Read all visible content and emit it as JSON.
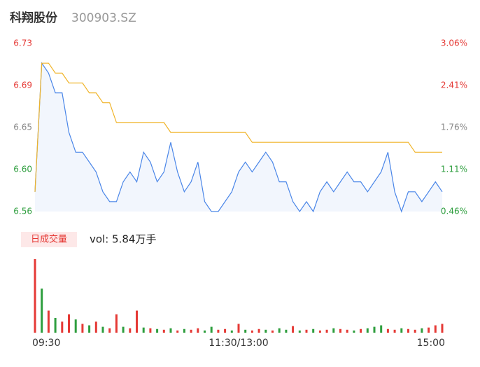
{
  "chart_data": [
    {
      "type": "line",
      "title": "科翔股份",
      "subtitle": "300903.SZ",
      "x": [
        0,
        4,
        8,
        12,
        16,
        20,
        24,
        28,
        32,
        36,
        40,
        44,
        48,
        52,
        56,
        60,
        64,
        68,
        72,
        76,
        80,
        84,
        88,
        92,
        96,
        100,
        104,
        108,
        112,
        116,
        120,
        124,
        128,
        132,
        136,
        140,
        144,
        148,
        152,
        156,
        160,
        164,
        168,
        172,
        176,
        180,
        184,
        188,
        192,
        196,
        200,
        204,
        208,
        212,
        216,
        220,
        224,
        228,
        232,
        236,
        240
      ],
      "xlim": [
        0,
        240
      ],
      "xticks": [
        {
          "value": 0,
          "label": "09:30"
        },
        {
          "value": 120,
          "label": "11:30/13:00"
        },
        {
          "value": 240,
          "label": "15:00"
        }
      ],
      "series": [
        {
          "name": "price",
          "color": "#4a86e8",
          "values": [
            6.58,
            6.71,
            6.7,
            6.68,
            6.68,
            6.64,
            6.62,
            6.62,
            6.61,
            6.6,
            6.58,
            6.57,
            6.57,
            6.59,
            6.6,
            6.59,
            6.62,
            6.61,
            6.59,
            6.6,
            6.63,
            6.6,
            6.58,
            6.59,
            6.61,
            6.57,
            6.56,
            6.56,
            6.57,
            6.58,
            6.6,
            6.61,
            6.6,
            6.61,
            6.62,
            6.61,
            6.59,
            6.59,
            6.57,
            6.56,
            6.57,
            6.56,
            6.58,
            6.59,
            6.58,
            6.59,
            6.6,
            6.59,
            6.59,
            6.58,
            6.59,
            6.6,
            6.62,
            6.58,
            6.56,
            6.58,
            6.58,
            6.57,
            6.58,
            6.59,
            6.58
          ]
        },
        {
          "name": "average",
          "color": "#f0b429",
          "values": [
            6.58,
            6.71,
            6.71,
            6.7,
            6.7,
            6.69,
            6.69,
            6.69,
            6.68,
            6.68,
            6.67,
            6.67,
            6.65,
            6.65,
            6.65,
            6.65,
            6.65,
            6.65,
            6.65,
            6.65,
            6.64,
            6.64,
            6.64,
            6.64,
            6.64,
            6.64,
            6.64,
            6.64,
            6.64,
            6.64,
            6.64,
            6.64,
            6.63,
            6.63,
            6.63,
            6.63,
            6.63,
            6.63,
            6.63,
            6.63,
            6.63,
            6.63,
            6.63,
            6.63,
            6.63,
            6.63,
            6.63,
            6.63,
            6.63,
            6.63,
            6.63,
            6.63,
            6.63,
            6.63,
            6.63,
            6.63,
            6.62,
            6.62,
            6.62,
            6.62,
            6.62
          ]
        }
      ],
      "ylim": [
        6.56,
        6.73
      ],
      "yticks": [
        {
          "value": 6.73,
          "label": "6.73"
        },
        {
          "value": 6.6875,
          "label": "6.69"
        },
        {
          "value": 6.645,
          "label": "6.65"
        },
        {
          "value": 6.6025,
          "label": "6.60"
        },
        {
          "value": 6.56,
          "label": "6.56"
        }
      ],
      "y2lim": [
        0.46,
        3.06
      ],
      "y2ticks": [
        {
          "value": 3.06,
          "label": "3.06%"
        },
        {
          "value": 2.41,
          "label": "2.41%"
        },
        {
          "value": 1.76,
          "label": "1.76%"
        },
        {
          "value": 1.11,
          "label": "1.11%"
        },
        {
          "value": 0.46,
          "label": "0.46%"
        }
      ]
    },
    {
      "type": "bar",
      "title": "日成交量",
      "annotation": "vol: 5.84万手",
      "values": [
        1000,
        600,
        300,
        200,
        150,
        250,
        180,
        120,
        100,
        150,
        80,
        60,
        250,
        80,
        60,
        300,
        70,
        60,
        50,
        40,
        60,
        30,
        50,
        40,
        60,
        30,
        80,
        40,
        50,
        30,
        120,
        40,
        30,
        50,
        40,
        30,
        60,
        40,
        90,
        30,
        40,
        50,
        30,
        40,
        60,
        50,
        40,
        30,
        50,
        60,
        80,
        100,
        50,
        40,
        60,
        50,
        40,
        60,
        70,
        100,
        120
      ],
      "colors": [
        "#e53935",
        "#2e9e3e",
        "#e53935",
        "#2e9e3e",
        "#e53935",
        "#e53935",
        "#2e9e3e",
        "#e53935",
        "#2e9e3e",
        "#e53935",
        "#2e9e3e",
        "#e53935",
        "#e53935",
        "#2e9e3e",
        "#e53935",
        "#e53935",
        "#2e9e3e",
        "#e53935",
        "#2e9e3e",
        "#e53935",
        "#2e9e3e",
        "#e53935",
        "#2e9e3e",
        "#e53935",
        "#e53935",
        "#2e9e3e",
        "#2e9e3e",
        "#e53935",
        "#e53935",
        "#2e9e3e",
        "#e53935",
        "#2e9e3e",
        "#e53935",
        "#e53935",
        "#2e9e3e",
        "#e53935",
        "#2e9e3e",
        "#2e9e3e",
        "#e53935",
        "#2e9e3e",
        "#e53935",
        "#2e9e3e",
        "#e53935",
        "#e53935",
        "#2e9e3e",
        "#e53935",
        "#e53935",
        "#2e9e3e",
        "#e53935",
        "#2e9e3e",
        "#2e9e3e",
        "#2e9e3e",
        "#e53935",
        "#e53935",
        "#2e9e3e",
        "#e53935",
        "#e53935",
        "#2e9e3e",
        "#e53935",
        "#e53935",
        "#e53935"
      ]
    }
  ]
}
